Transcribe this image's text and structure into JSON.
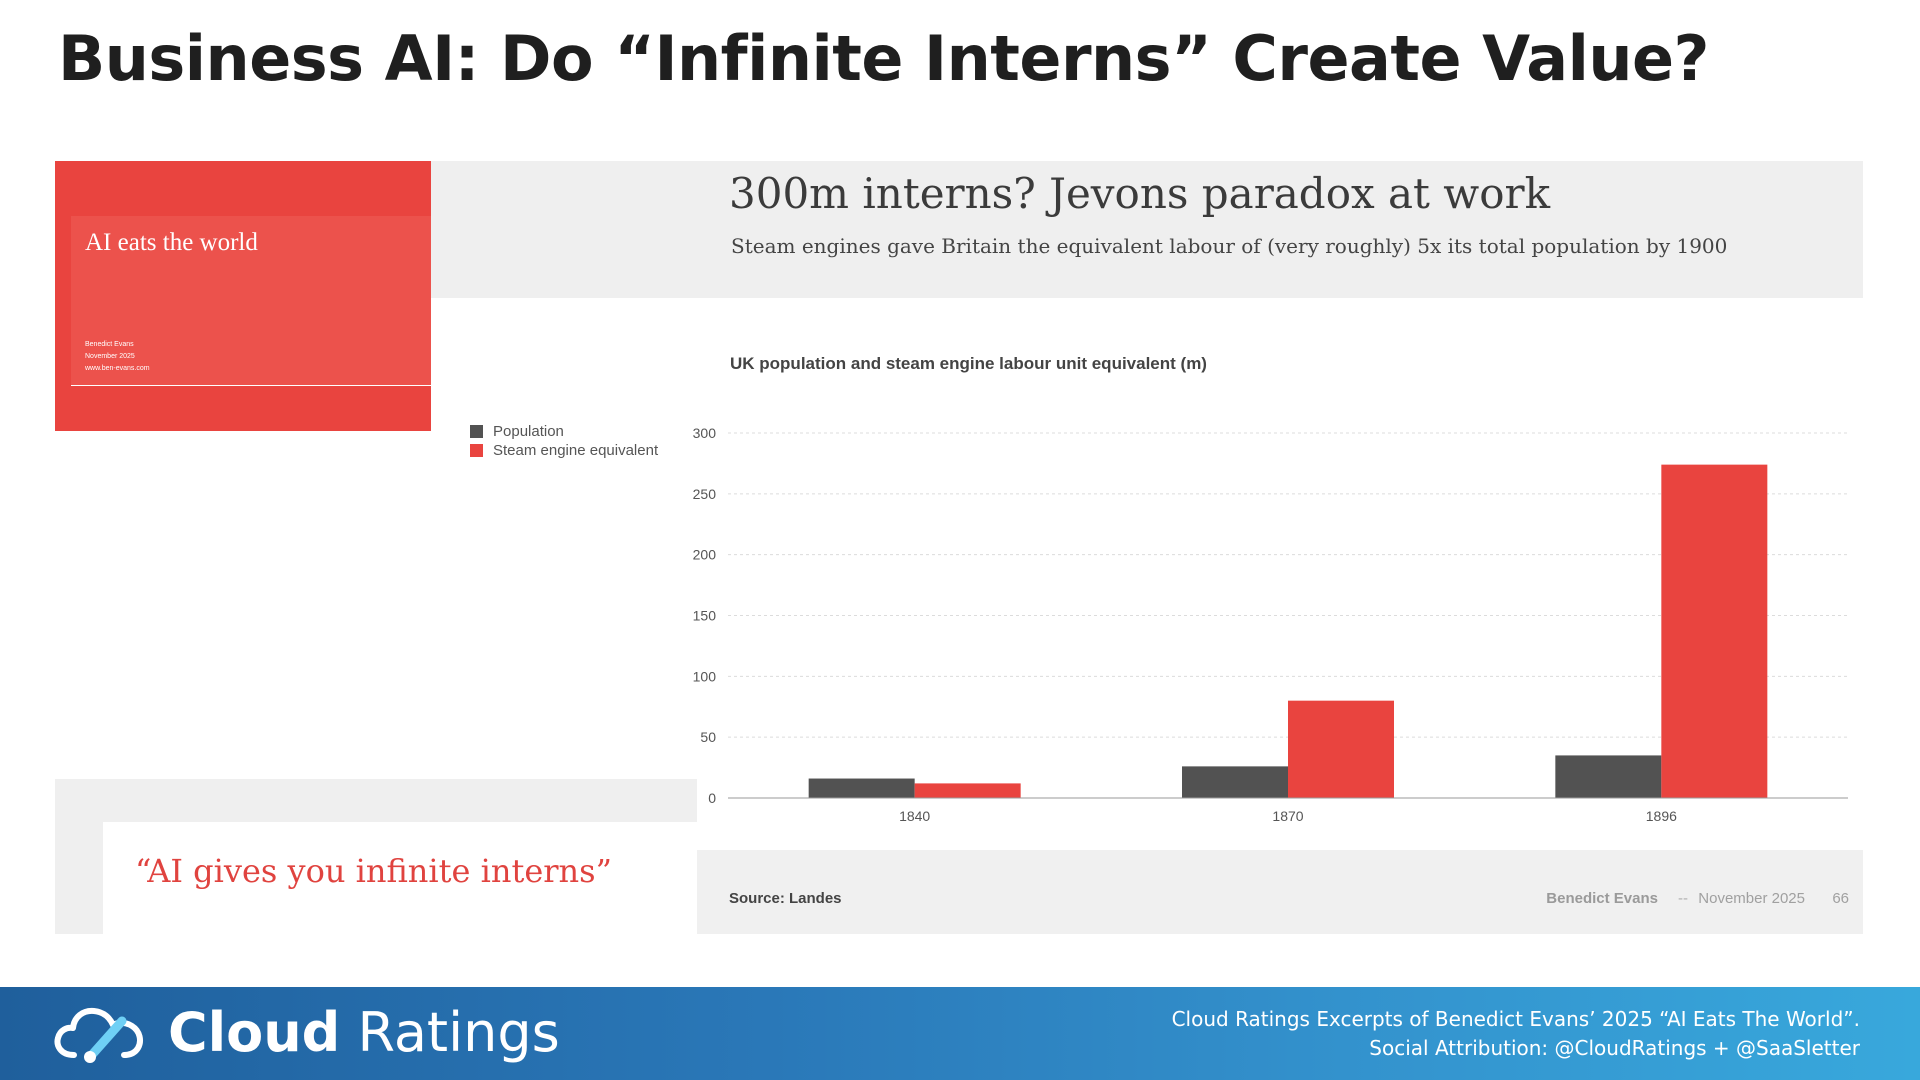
{
  "page": {
    "title": "Business AI: Do “Infinite Interns” Create Value?"
  },
  "cover": {
    "title": "AI eats the world",
    "author": "Benedict Evans",
    "date": "November 2025",
    "url": "www.ben-evans.com"
  },
  "slide": {
    "title": "300m interns? Jevons paradox at work",
    "subtitle": "Steam engines gave Britain the equivalent labour of (very roughly) 5x its total population by 1900",
    "chart_heading": "UK population and steam engine labour unit equivalent (m)",
    "source": "Source: Landes",
    "footer_author": "Benedict Evans",
    "footer_sep": "--",
    "footer_date": "November 2025",
    "page_number": "66"
  },
  "quote": {
    "text": "“AI gives you infinite interns”"
  },
  "banner": {
    "brand_bold": "Cloud",
    "brand_light": " Ratings",
    "line1": "Cloud Ratings Excerpts of Benedict Evans’ 2025 “AI Eats The World”.",
    "line2": "Social Attribution: @CloudRatings + @SaaSletter"
  },
  "colors": {
    "population": "#525252",
    "steam": "#e9443f",
    "banner_start": "#1f5f9c",
    "banner_end": "#38a8dc"
  },
  "chart_data": {
    "type": "bar",
    "title": "UK population and steam engine labour unit equivalent (m)",
    "categories": [
      "1840",
      "1870",
      "1896"
    ],
    "series": [
      {
        "name": "Population",
        "values": [
          16,
          26,
          35
        ]
      },
      {
        "name": "Steam engine equivalent",
        "values": [
          12,
          80,
          274
        ]
      }
    ],
    "ylim": [
      0,
      300
    ],
    "yticks": [
      0,
      50,
      100,
      150,
      200,
      250,
      300
    ],
    "grid": true,
    "legend_position": "left"
  }
}
